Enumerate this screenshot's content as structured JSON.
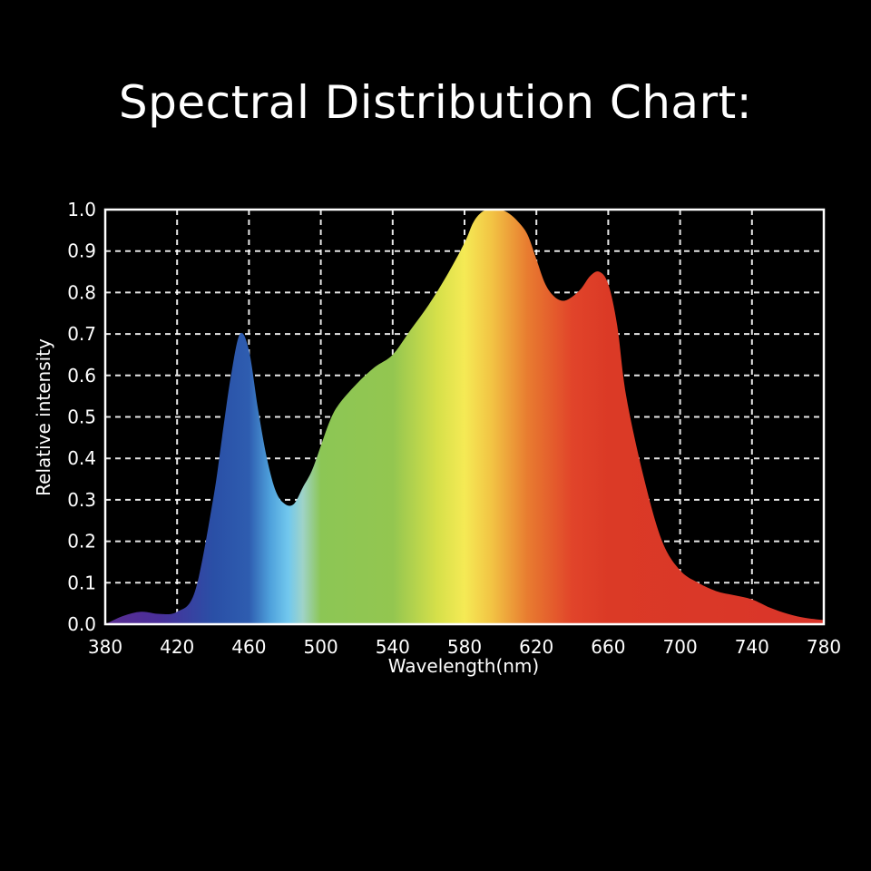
{
  "title": "Spectral Distribution Chart:",
  "chart_data": {
    "type": "area",
    "xlabel": "Wavelength(nm)",
    "ylabel": "Relative intensity",
    "xlim": [
      380,
      780
    ],
    "ylim": [
      0,
      1.0
    ],
    "grid": true,
    "x_ticks": [
      "380",
      "420",
      "460",
      "500",
      "540",
      "580",
      "620",
      "660",
      "700",
      "740",
      "780"
    ],
    "y_ticks": [
      "0.0",
      "0.1",
      "0.2",
      "0.3",
      "0.4",
      "0.5",
      "0.6",
      "0.7",
      "0.8",
      "0.9",
      "1.0"
    ],
    "series": [
      {
        "x": [
          380,
          390,
          400,
          410,
          420,
          430,
          440,
          445,
          450,
          455,
          460,
          465,
          470,
          475,
          480,
          485,
          490,
          495,
          500,
          505,
          510,
          520,
          530,
          540,
          550,
          560,
          570,
          580,
          585,
          590,
          595,
          600,
          605,
          610,
          615,
          620,
          625,
          630,
          635,
          640,
          645,
          650,
          655,
          660,
          665,
          670,
          680,
          690,
          700,
          710,
          720,
          730,
          740,
          750,
          760,
          770,
          780
        ],
        "y": [
          0.0,
          0.02,
          0.03,
          0.025,
          0.03,
          0.08,
          0.3,
          0.45,
          0.6,
          0.7,
          0.66,
          0.52,
          0.4,
          0.32,
          0.29,
          0.29,
          0.33,
          0.37,
          0.43,
          0.49,
          0.53,
          0.58,
          0.62,
          0.65,
          0.71,
          0.77,
          0.84,
          0.92,
          0.97,
          0.995,
          1.0,
          1.0,
          0.99,
          0.97,
          0.94,
          0.88,
          0.82,
          0.79,
          0.78,
          0.79,
          0.81,
          0.84,
          0.85,
          0.82,
          0.72,
          0.55,
          0.35,
          0.2,
          0.13,
          0.1,
          0.08,
          0.07,
          0.06,
          0.04,
          0.025,
          0.015,
          0.01
        ]
      }
    ],
    "colors": {
      "background": "#000000",
      "grid": "#ffffff",
      "text": "#ffffff"
    },
    "gradient_stops": [
      {
        "wavelength": 380,
        "color": "#5a2d91"
      },
      {
        "wavelength": 410,
        "color": "#4a2f9a"
      },
      {
        "wavelength": 440,
        "color": "#2a4fa6"
      },
      {
        "wavelength": 460,
        "color": "#2e5db0"
      },
      {
        "wavelength": 472,
        "color": "#4fa2dc"
      },
      {
        "wavelength": 482,
        "color": "#72c8ee"
      },
      {
        "wavelength": 490,
        "color": "#9fd3c8"
      },
      {
        "wavelength": 500,
        "color": "#8cc655"
      },
      {
        "wavelength": 540,
        "color": "#93c650"
      },
      {
        "wavelength": 565,
        "color": "#d6e04a"
      },
      {
        "wavelength": 580,
        "color": "#f5ea55"
      },
      {
        "wavelength": 595,
        "color": "#f2c444"
      },
      {
        "wavelength": 615,
        "color": "#e87c30"
      },
      {
        "wavelength": 640,
        "color": "#e1442a"
      },
      {
        "wavelength": 660,
        "color": "#db3a26"
      },
      {
        "wavelength": 780,
        "color": "#d9352a"
      }
    ]
  }
}
